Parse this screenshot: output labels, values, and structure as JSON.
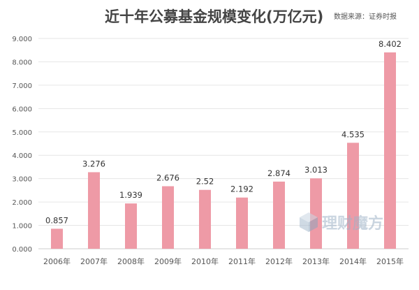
{
  "chart_data": {
    "type": "bar",
    "title": "近十年公募基金规模变化(万亿元)",
    "source": "数据来源：证券时报",
    "watermark": "理财魔方",
    "categories": [
      "2006年",
      "2007年",
      "2008年",
      "2009年",
      "2010年",
      "2011年",
      "2012年",
      "2013年",
      "2014年",
      "2015年"
    ],
    "values": [
      0.857,
      3.276,
      1.939,
      2.676,
      2.52,
      2.192,
      2.874,
      3.013,
      4.535,
      8.402
    ],
    "value_labels": [
      "0.857",
      "3.276",
      "1.939",
      "2.676",
      "2.52",
      "2.192",
      "2.874",
      "3.013",
      "4.535",
      "8.402"
    ],
    "y_ticks": [
      0,
      1,
      2,
      3,
      4,
      5,
      6,
      7,
      8,
      9
    ],
    "y_tick_labels": [
      "0.000",
      "1.000",
      "2.000",
      "3.000",
      "4.000",
      "5.000",
      "6.000",
      "7.000",
      "8.000",
      "9.000"
    ],
    "ylim": [
      0,
      9
    ],
    "xlabel": "",
    "ylabel": "",
    "grid": true,
    "legend": "none",
    "bar_color": "#ee9aa6",
    "grid_color": "#e6e6e6",
    "axis_color": "#cccccc"
  }
}
